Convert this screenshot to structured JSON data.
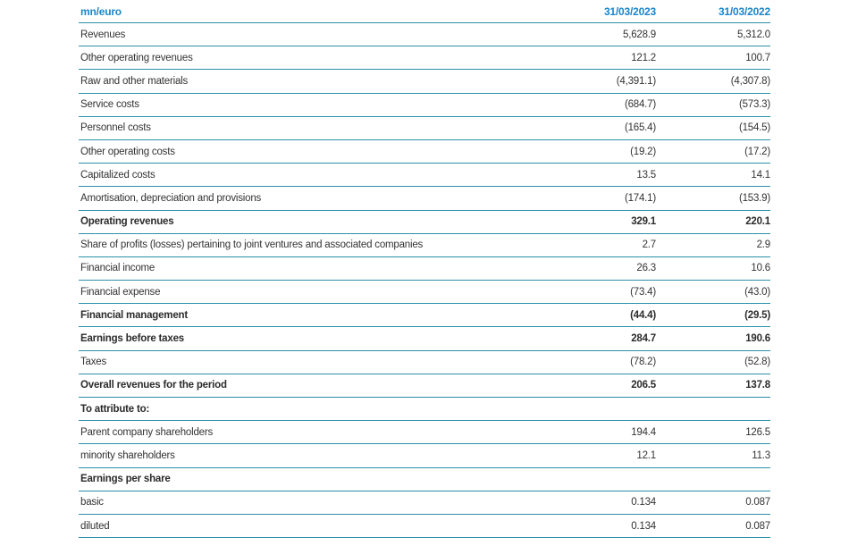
{
  "table": {
    "header": {
      "unit": "mn/euro",
      "col1": "31/03/2023",
      "col2": "31/03/2022"
    },
    "rows": [
      {
        "label": "Revenues",
        "v1": "5,628.9",
        "v2": "5,312.0",
        "bold": false
      },
      {
        "label": "Other operating revenues",
        "v1": "121.2",
        "v2": "100.7",
        "bold": false
      },
      {
        "label": "Raw and other materials",
        "v1": "(4,391.1)",
        "v2": "(4,307.8)",
        "bold": false
      },
      {
        "label": "Service costs",
        "v1": "(684.7)",
        "v2": "(573.3)",
        "bold": false
      },
      {
        "label": "Personnel costs",
        "v1": "(165.4)",
        "v2": "(154.5)",
        "bold": false
      },
      {
        "label": "Other operating costs",
        "v1": "(19.2)",
        "v2": "(17.2)",
        "bold": false
      },
      {
        "label": "Capitalized costs",
        "v1": "13.5",
        "v2": "14.1",
        "bold": false
      },
      {
        "label": "Amortisation, depreciation and provisions",
        "v1": "(174.1)",
        "v2": "(153.9)",
        "bold": false
      },
      {
        "label": "Operating revenues",
        "v1": "329.1",
        "v2": "220.1",
        "bold": true
      },
      {
        "label": "Share of profits (losses) pertaining to joint ventures and associated companies",
        "v1": "2.7",
        "v2": "2.9",
        "bold": false
      },
      {
        "label": "Financial income",
        "v1": "26.3",
        "v2": "10.6",
        "bold": false
      },
      {
        "label": "Financial expense",
        "v1": "(73.4)",
        "v2": "(43.0)",
        "bold": false
      },
      {
        "label": "Financial management",
        "v1": "(44.4)",
        "v2": "(29.5)",
        "bold": true
      },
      {
        "label": "Earnings before taxes",
        "v1": "284.7",
        "v2": "190.6",
        "bold": true
      },
      {
        "label": "Taxes",
        "v1": "(78.2)",
        "v2": "(52.8)",
        "bold": false
      },
      {
        "label": "Overall revenues for the period",
        "v1": "206.5",
        "v2": "137.8",
        "bold": true
      },
      {
        "label": "To attribute to:",
        "v1": "",
        "v2": "",
        "bold": true
      },
      {
        "label": "Parent company shareholders",
        "v1": "194.4",
        "v2": "126.5",
        "bold": false
      },
      {
        "label": "minority shareholders",
        "v1": "12.1",
        "v2": "11.3",
        "bold": false
      },
      {
        "label": "Earnings per share",
        "v1": "",
        "v2": "",
        "bold": true
      },
      {
        "label": "basic",
        "v1": "0.134",
        "v2": "0.087",
        "bold": false
      },
      {
        "label": "diluted",
        "v1": "0.134",
        "v2": "0.087",
        "bold": false
      }
    ]
  }
}
